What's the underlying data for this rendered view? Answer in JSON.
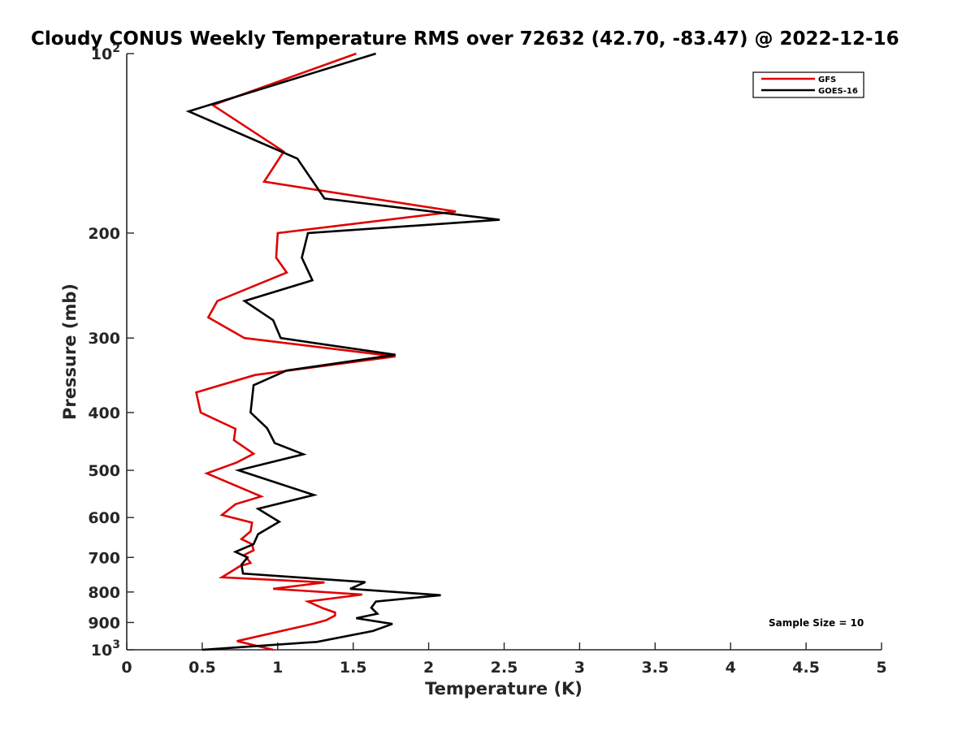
{
  "chart_data": {
    "type": "line",
    "title": "Cloudy CONUS Weekly Temperature RMS over 72632 (42.70, -83.47) @ 2022-12-16",
    "xlabel": "Temperature (K)",
    "ylabel": "Pressure (mb)",
    "xlim": [
      0,
      5
    ],
    "ylim": [
      100,
      1000
    ],
    "yscale": "log",
    "y_reversed": true,
    "x_ticks": [
      0,
      0.5,
      1,
      1.5,
      2,
      2.5,
      3,
      3.5,
      4,
      4.5,
      5
    ],
    "x_tick_labels": [
      "0",
      "0.5",
      "1",
      "1.5",
      "2",
      "2.5",
      "3",
      "3.5",
      "4",
      "4.5",
      "5"
    ],
    "y_ticks": [
      100,
      200,
      300,
      400,
      500,
      600,
      700,
      800,
      900,
      1000
    ],
    "y_tick_labels": [
      {
        "base": "10",
        "exp": "2"
      },
      {
        "text": "200"
      },
      {
        "text": "300"
      },
      {
        "text": "400"
      },
      {
        "text": "500"
      },
      {
        "text": "600"
      },
      {
        "text": "700"
      },
      {
        "text": "800"
      },
      {
        "text": "900"
      },
      {
        "base": "10",
        "exp": "3"
      }
    ],
    "grid": false,
    "legend_position": "top-right",
    "annotation": "Sample Size = 10",
    "series": [
      {
        "name": "GFS",
        "color": "#e00000",
        "points": [
          [
            1.52,
            100
          ],
          [
            0.57,
            122
          ],
          [
            1.04,
            146
          ],
          [
            0.91,
            164
          ],
          [
            2.18,
            184
          ],
          [
            1.0,
            200
          ],
          [
            0.99,
            220
          ],
          [
            1.06,
            233
          ],
          [
            0.6,
            260
          ],
          [
            0.54,
            277
          ],
          [
            0.78,
            300
          ],
          [
            1.78,
            322
          ],
          [
            0.85,
            346
          ],
          [
            0.46,
            370
          ],
          [
            0.49,
            400
          ],
          [
            0.72,
            426
          ],
          [
            0.71,
            445
          ],
          [
            0.84,
            469
          ],
          [
            0.73,
            485
          ],
          [
            0.53,
            506
          ],
          [
            0.89,
            553
          ],
          [
            0.72,
            570
          ],
          [
            0.63,
            594
          ],
          [
            0.83,
            612
          ],
          [
            0.82,
            633
          ],
          [
            0.76,
            652
          ],
          [
            0.83,
            665
          ],
          [
            0.84,
            681
          ],
          [
            0.78,
            693
          ],
          [
            0.82,
            715
          ],
          [
            0.75,
            724
          ],
          [
            0.63,
            756
          ],
          [
            1.31,
            771
          ],
          [
            0.97,
            790
          ],
          [
            1.56,
            808
          ],
          [
            1.2,
            830
          ],
          [
            1.3,
            852
          ],
          [
            1.38,
            866
          ],
          [
            1.38,
            876
          ],
          [
            1.32,
            892
          ],
          [
            1.24,
            904
          ],
          [
            0.73,
            967
          ],
          [
            0.97,
            1000
          ]
        ]
      },
      {
        "name": "GOES-16",
        "color": "#000000",
        "points": [
          [
            1.65,
            100
          ],
          [
            0.41,
            125
          ],
          [
            1.13,
            150
          ],
          [
            1.31,
            175
          ],
          [
            2.47,
            190
          ],
          [
            1.2,
            200
          ],
          [
            1.16,
            220
          ],
          [
            1.23,
            240
          ],
          [
            0.78,
            260
          ],
          [
            0.97,
            280
          ],
          [
            1.02,
            300
          ],
          [
            1.78,
            320
          ],
          [
            1.06,
            340
          ],
          [
            0.84,
            360
          ],
          [
            0.82,
            400
          ],
          [
            0.93,
            425
          ],
          [
            0.98,
            450
          ],
          [
            1.17,
            470
          ],
          [
            0.74,
            500
          ],
          [
            1.24,
            550
          ],
          [
            0.87,
            580
          ],
          [
            1.01,
            610
          ],
          [
            0.87,
            640
          ],
          [
            0.84,
            665
          ],
          [
            0.72,
            685
          ],
          [
            0.8,
            700
          ],
          [
            0.76,
            720
          ],
          [
            0.77,
            745
          ],
          [
            1.58,
            770
          ],
          [
            1.48,
            790
          ],
          [
            2.08,
            810
          ],
          [
            1.65,
            830
          ],
          [
            1.62,
            850
          ],
          [
            1.66,
            870
          ],
          [
            1.52,
            885
          ],
          [
            1.76,
            905
          ],
          [
            1.63,
            930
          ],
          [
            1.26,
            970
          ],
          [
            0.5,
            1000
          ]
        ]
      }
    ]
  }
}
